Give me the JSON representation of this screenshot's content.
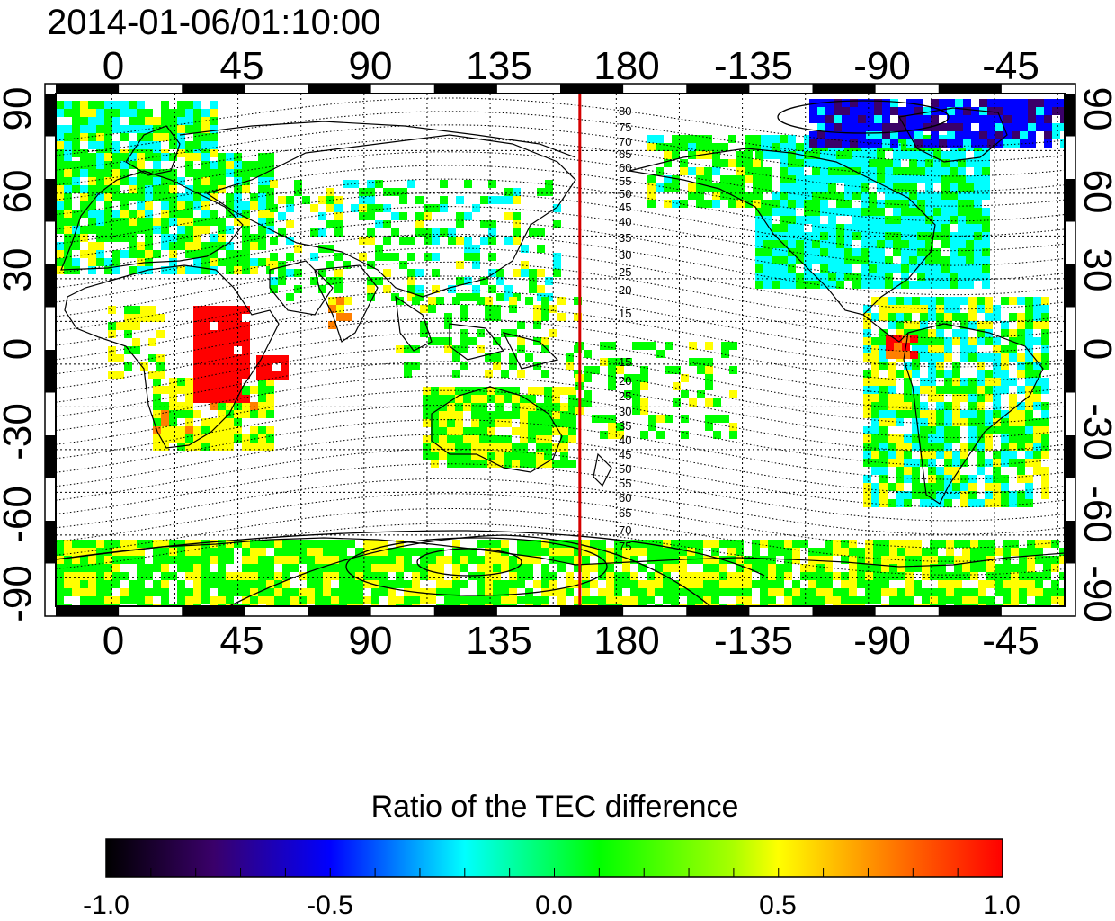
{
  "map": {
    "title": "2014-01-06/01:10:00",
    "top_lon_labels": [
      "0",
      "45",
      "90",
      "135",
      "180",
      "-135",
      "-90",
      "-45"
    ],
    "bottom_lon_labels": [
      "0",
      "45",
      "90",
      "135",
      "180",
      "-135",
      "-90",
      "-45"
    ],
    "left_lat_labels": [
      "90",
      "60",
      "30",
      "0",
      "-30",
      "-60",
      "-90"
    ],
    "right_lat_labels": [
      "90",
      "60",
      "30",
      "0",
      "-30",
      "-60",
      "-90"
    ],
    "contour_labels_north": [
      "80",
      "75",
      "70",
      "65",
      "60",
      "55",
      "50",
      "45",
      "40",
      "35",
      "30",
      "25",
      "20",
      "15"
    ],
    "contour_labels_south": [
      "15",
      "20",
      "25",
      "30",
      "35",
      "40",
      "45",
      "50",
      "55",
      "60",
      "65",
      "70",
      "75"
    ],
    "terminator_longitude": 167,
    "terminator_color": "#d40000"
  },
  "colorbar": {
    "title": "Ratio of the TEC difference",
    "tick_labels": [
      "-1.0",
      "-0.5",
      "0.0",
      "0.5",
      "1.0"
    ],
    "range": [
      -1.0,
      1.0
    ],
    "colors": [
      "#000000",
      "#3a006a",
      "#0000ff",
      "#00ffff",
      "#00ff00",
      "#ffff00",
      "#ff8000",
      "#ff0000"
    ]
  }
}
